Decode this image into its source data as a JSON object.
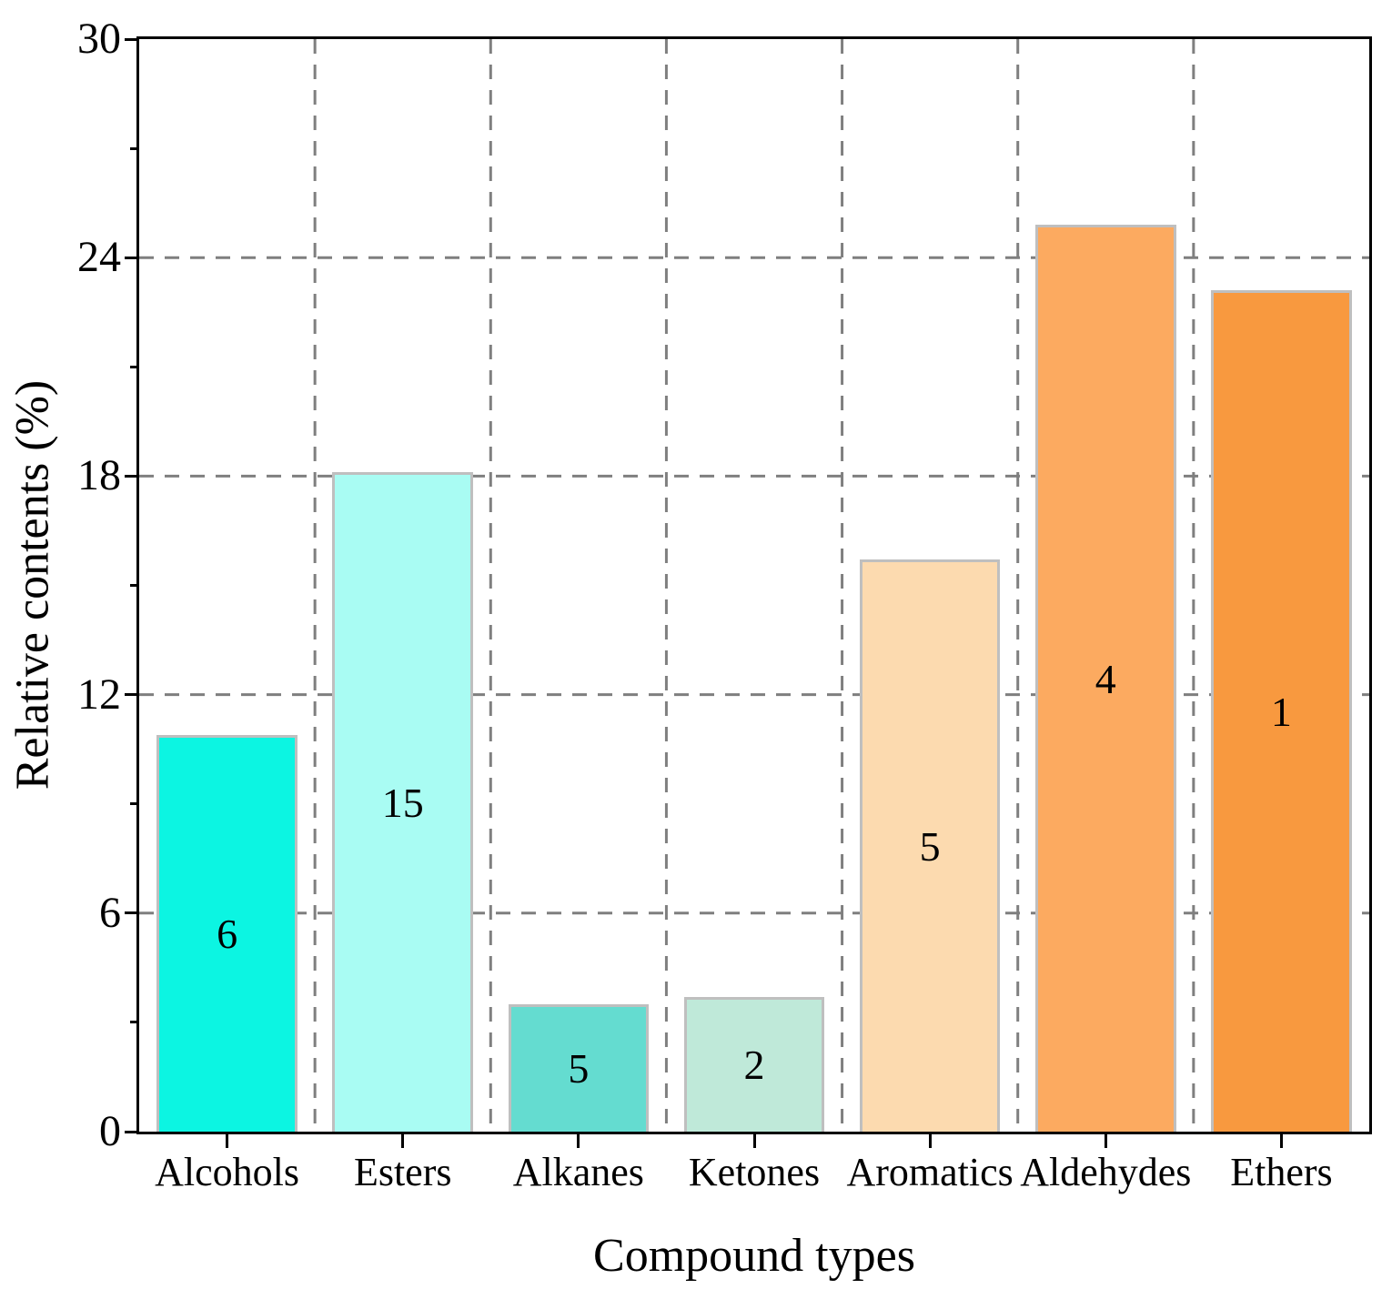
{
  "chart_data": {
    "type": "bar",
    "title": "",
    "xlabel": "Compound types",
    "ylabel": "Relative contents (%)",
    "categories": [
      "Alcohols",
      "Esters",
      "Alkanes",
      "Ketones",
      "Aromatics",
      "Aldehydes",
      "Ethers"
    ],
    "values": [
      10.9,
      18.1,
      3.5,
      3.7,
      15.7,
      24.9,
      23.1
    ],
    "bar_labels": [
      "6",
      "15",
      "5",
      "2",
      "5",
      "4",
      "1"
    ],
    "bar_colors": [
      "#0cf5e2",
      "#a9fcf3",
      "#64dcd0",
      "#bfe9d9",
      "#fcdaaf",
      "#fcaa60",
      "#f8993f"
    ],
    "bar_edge_color": "#bfbfbf",
    "ylim": [
      0,
      30
    ],
    "yticks": [
      0,
      6,
      12,
      18,
      24,
      30
    ],
    "minor_yticks": [
      3,
      9,
      15,
      21,
      27
    ],
    "grid": {
      "horizontal_lines": [
        6,
        12,
        18,
        24
      ],
      "vertical_lines_at_category_boundaries": true,
      "color": "#7f7f7f",
      "style": "dashed"
    },
    "legend": null,
    "frame": "full-box",
    "background": "#ffffff"
  }
}
